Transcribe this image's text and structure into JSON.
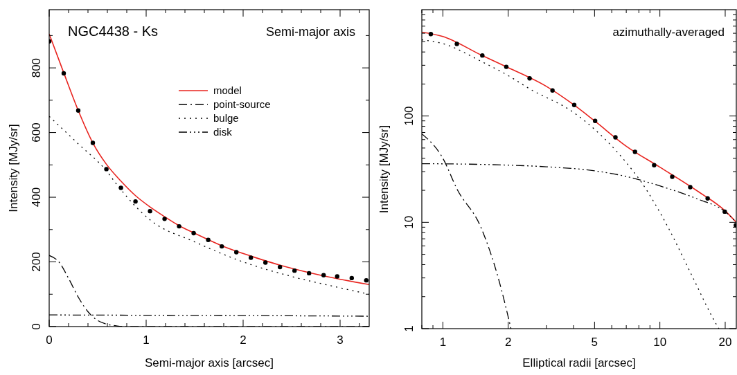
{
  "chart_data": [
    {
      "type": "line",
      "title": "NGC4438 - Ks",
      "subtitle": "Semi-major axis",
      "xlabel": "Semi-major axis [arcsec]",
      "ylabel": "Intensity [MJy/sr]",
      "xlim": [
        0,
        3.3
      ],
      "ylim": [
        0,
        980
      ],
      "xticks": [
        0,
        {
          "value": 0.2,
          "label": null
        },
        {
          "value": 0.4,
          "label": null
        },
        {
          "value": 0.6,
          "label": null
        },
        {
          "value": 0.8,
          "label": null
        },
        1,
        {
          "value": 1.2,
          "label": null
        },
        {
          "value": 1.4,
          "label": null
        },
        {
          "value": 1.6,
          "label": null
        },
        {
          "value": 1.8,
          "label": null
        },
        2,
        {
          "value": 2.2,
          "label": null
        },
        {
          "value": 2.4,
          "label": null
        },
        {
          "value": 2.6,
          "label": null
        },
        {
          "value": 2.8,
          "label": null
        },
        3,
        {
          "value": 3.2,
          "label": null
        }
      ],
      "yticks": [
        0,
        {
          "value": 100,
          "label": null
        },
        200,
        {
          "value": 300,
          "label": null
        },
        400,
        {
          "value": 500,
          "label": null
        },
        600,
        {
          "value": 700,
          "label": null
        },
        800,
        {
          "value": 900,
          "label": null
        }
      ],
      "legend": "top right",
      "series": [
        {
          "name": "model",
          "color": "#e8231e",
          "line_style": "solid",
          "x": [
            0,
            0.15,
            0.3,
            0.45,
            0.59,
            0.74,
            0.89,
            1.04,
            1.19,
            1.34,
            1.49,
            1.78,
            2.08,
            2.38,
            2.68,
            2.97,
            3.3
          ],
          "values": [
            905,
            785,
            668,
            568,
            502,
            450,
            405,
            370,
            340,
            312,
            290,
            250,
            218,
            190,
            167,
            148,
            130
          ]
        },
        {
          "name": "point-source",
          "color": "#000000",
          "line_style": "dashdot",
          "x": [
            0,
            0.1,
            0.2,
            0.3,
            0.4,
            0.5,
            0.6,
            0.7,
            0.8,
            1,
            2,
            3.3
          ],
          "values": [
            220,
            200,
            149,
            91,
            46,
            19,
            7,
            2,
            0,
            0,
            0,
            0
          ]
        },
        {
          "name": "bulge",
          "color": "#000000",
          "line_style": "dotted",
          "x": [
            0,
            0.3,
            0.6,
            0.69,
            1.04,
            1.5,
            2,
            2.5,
            3,
            3.3
          ],
          "values": [
            650,
            565,
            478,
            442,
            330,
            262,
            200,
            155,
            120,
            100
          ]
        },
        {
          "name": "disk",
          "color": "#000000",
          "line_style": "dashdotdot",
          "x": [
            0,
            1,
            2,
            3.3
          ],
          "values": [
            36,
            35,
            34,
            32
          ]
        },
        {
          "type": "scatter",
          "color": "#000000",
          "marker": "circle",
          "x": [
            0,
            0.15,
            0.3,
            0.45,
            0.59,
            0.74,
            0.89,
            1.04,
            1.19,
            1.34,
            1.49,
            1.64,
            1.78,
            1.93,
            2.08,
            2.23,
            2.38,
            2.53,
            2.68,
            2.83,
            2.97,
            3.12,
            3.27
          ],
          "values": [
            882,
            783,
            668,
            568,
            487,
            429,
            387,
            357,
            333,
            310,
            289,
            268,
            248,
            230,
            213,
            198,
            184,
            173,
            165,
            159,
            155,
            150,
            143
          ]
        }
      ]
    },
    {
      "type": "line",
      "title": "azimuthally-averaged",
      "xlabel": "Elliptical radii [arcsec]",
      "ylabel": "Intensity [MJy/sr]",
      "log": "xy",
      "xlim": [
        0.8,
        22.5
      ],
      "ylim": [
        1,
        1000
      ],
      "xticks": [
        {
          "value": 0.8,
          "label": null
        },
        {
          "value": 0.9,
          "label": null
        },
        1,
        2,
        {
          "value": 3,
          "label": null
        },
        {
          "value": 4,
          "label": null
        },
        5,
        {
          "value": 6,
          "label": null
        },
        {
          "value": 7,
          "label": null
        },
        {
          "value": 8,
          "label": null
        },
        {
          "value": 9,
          "label": null
        },
        10,
        20
      ],
      "yticks": [
        1,
        {
          "value": 2,
          "label": null
        },
        {
          "value": 3,
          "label": null
        },
        {
          "value": 4,
          "label": null
        },
        {
          "value": 5,
          "label": null
        },
        {
          "value": 6,
          "label": null
        },
        {
          "value": 7,
          "label": null
        },
        {
          "value": 8,
          "label": null
        },
        {
          "value": 9,
          "label": null
        },
        10,
        {
          "value": 20,
          "label": null
        },
        {
          "value": 30,
          "label": null
        },
        {
          "value": 40,
          "label": null
        },
        {
          "value": 50,
          "label": null
        },
        {
          "value": 60,
          "label": null
        },
        {
          "value": 70,
          "label": null
        },
        {
          "value": 80,
          "label": null
        },
        {
          "value": 90,
          "label": null
        },
        100,
        {
          "value": 200,
          "label": null
        },
        {
          "value": 300,
          "label": null
        },
        {
          "value": 400,
          "label": null
        },
        {
          "value": 500,
          "label": null
        },
        {
          "value": 600,
          "label": null
        },
        {
          "value": 700,
          "label": null
        },
        {
          "value": 800,
          "label": null
        },
        {
          "value": 900,
          "label": null
        }
      ],
      "series": [
        {
          "color": "#e8231e",
          "line_style": "solid",
          "x": [
            0.8,
            1,
            1.5,
            2,
            3,
            4,
            5,
            7,
            10,
            15,
            20,
            22.5
          ],
          "values": [
            615,
            560,
            375,
            285,
            190,
            128,
            90,
            52,
            33,
            19.5,
            12.8,
            10
          ]
        },
        {
          "color": "#000000",
          "line_style": "dashdot",
          "x": [
            0.8,
            1,
            1.16,
            1.5,
            1.8,
            2.06
          ],
          "values": [
            68,
            40,
            20.7,
            8.9,
            3,
            1
          ]
        },
        {
          "color": "#000000",
          "line_style": "dotted",
          "x": [
            0.8,
            1,
            1.5,
            2,
            2.5,
            4,
            5,
            7,
            8.2,
            10.9,
            14,
            18.1,
            18.7
          ],
          "values": [
            521,
            480,
            327,
            240,
            181,
            108,
            75,
            36.5,
            24,
            9,
            3.2,
            1.12,
            1
          ]
        },
        {
          "color": "#000000",
          "line_style": "dashdotdot",
          "x": [
            0.8,
            1,
            2,
            3,
            5,
            7,
            10,
            15,
            20,
            22.5
          ],
          "values": [
            35.6,
            35.5,
            34.5,
            33.3,
            30.5,
            27,
            22,
            16.5,
            12.6,
            10
          ]
        },
        {
          "type": "scatter",
          "color": "#000000",
          "marker": "circle",
          "x": [
            0.88,
            1.16,
            1.52,
            1.96,
            2.51,
            3.2,
            4.03,
            5.03,
            6.24,
            7.68,
            9.41,
            11.4,
            13.8,
            16.6,
            19.9,
            22.4
          ],
          "values": [
            590,
            476,
            371,
            290,
            226,
            174,
            127,
            90,
            63,
            46,
            34.5,
            26.8,
            21.4,
            16.8,
            12.6,
            9.4
          ]
        }
      ]
    }
  ]
}
